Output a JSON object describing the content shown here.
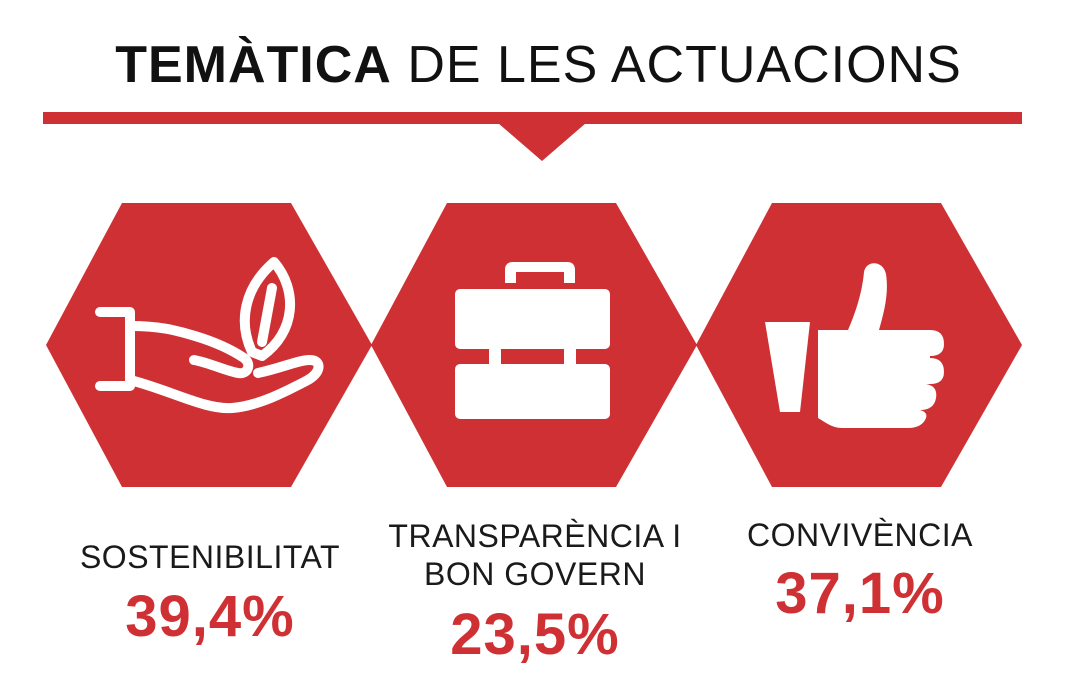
{
  "title": {
    "bold": "TEMÀTICA",
    "light": "DE LES ACTUACIONS"
  },
  "colors": {
    "accent": "#cf3033",
    "text": "#111111",
    "icon": "#ffffff"
  },
  "chart_data": {
    "type": "infographic",
    "title": "TEMÀTICA DE LES ACTUACIONS",
    "unit": "%",
    "categories": [
      {
        "label_lines": [
          "SOSTENIBILITAT"
        ],
        "value": 39.4,
        "value_label": "39,4%",
        "icon": "hand-leaf-icon"
      },
      {
        "label_lines": [
          "TRANSPARÈNCIA I",
          "BON GOVERN"
        ],
        "value": 23.5,
        "value_label": "23,5%",
        "icon": "briefcase-icon"
      },
      {
        "label_lines": [
          "CONVIVÈNCIA"
        ],
        "value": 37.1,
        "value_label": "37,1%",
        "icon": "thumbs-up-icon"
      }
    ]
  }
}
